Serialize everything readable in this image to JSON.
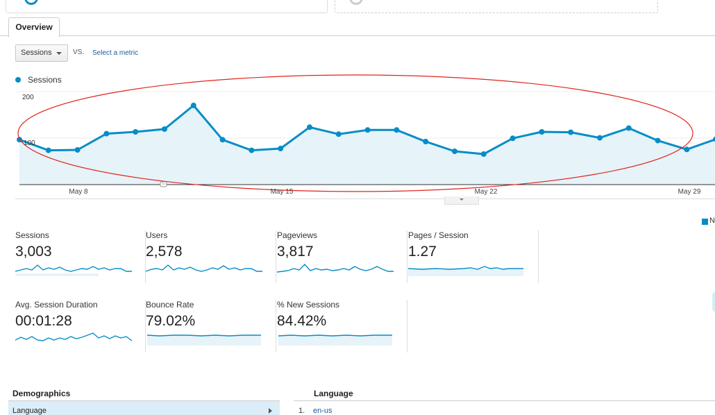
{
  "tabs": {
    "overview": "Overview"
  },
  "metric_selector": {
    "selected": "Sessions",
    "vs_label": "VS.",
    "select_metric_link": "Select a metric"
  },
  "chart_data": {
    "type": "line",
    "series": [
      {
        "name": "Sessions",
        "values": [
          97,
          74,
          75,
          110,
          114,
          120,
          171,
          97,
          74,
          78,
          124,
          109,
          118,
          118,
          93,
          72,
          66,
          100,
          114,
          113,
          101,
          122,
          95,
          76,
          98
        ]
      }
    ],
    "x_ticks": [
      "May 8",
      "May 15",
      "May 22",
      "May 29"
    ],
    "y_ticks": [
      "200",
      "100"
    ],
    "ylim": [
      0,
      200
    ],
    "color": "#058dc7",
    "fill": "#e6f3f9",
    "annotation": "red ellipse highlighting the sessions line"
  },
  "scorecards": [
    {
      "label": "Sessions",
      "value": "3,003"
    },
    {
      "label": "Users",
      "value": "2,578"
    },
    {
      "label": "Pageviews",
      "value": "3,817"
    },
    {
      "label": "Pages / Session",
      "value": "1.27"
    },
    {
      "label": "Avg. Session Duration",
      "value": "00:01:28"
    },
    {
      "label": "Bounce Rate",
      "value": "79.02%"
    },
    {
      "label": "% New Sessions",
      "value": "84.42%"
    }
  ],
  "legend_right": {
    "label": "N"
  },
  "demographics": {
    "title": "Demographics",
    "row_label": "Language"
  },
  "language": {
    "title": "Language",
    "first_row_num": "1.",
    "first_row_value": "en-us"
  },
  "colors": {
    "accent": "#058dc7",
    "link": "#1a5b9c",
    "annotation": "#e0231c"
  }
}
